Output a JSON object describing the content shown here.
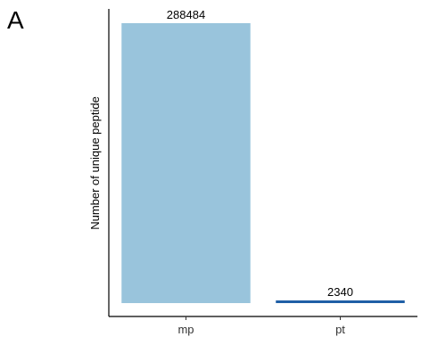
{
  "panel_label": "A",
  "chart_data": {
    "type": "bar",
    "title": "",
    "xlabel": "",
    "ylabel": "Number of unique peptide",
    "categories": [
      "mp",
      "pt"
    ],
    "values": [
      288484,
      2340
    ],
    "data_labels": [
      "288484",
      "2340"
    ],
    "bar_colors": [
      "#99c4dc",
      "#1f5fa6"
    ],
    "ylim": [
      0,
      288484
    ],
    "grid": false,
    "legend": "none"
  }
}
